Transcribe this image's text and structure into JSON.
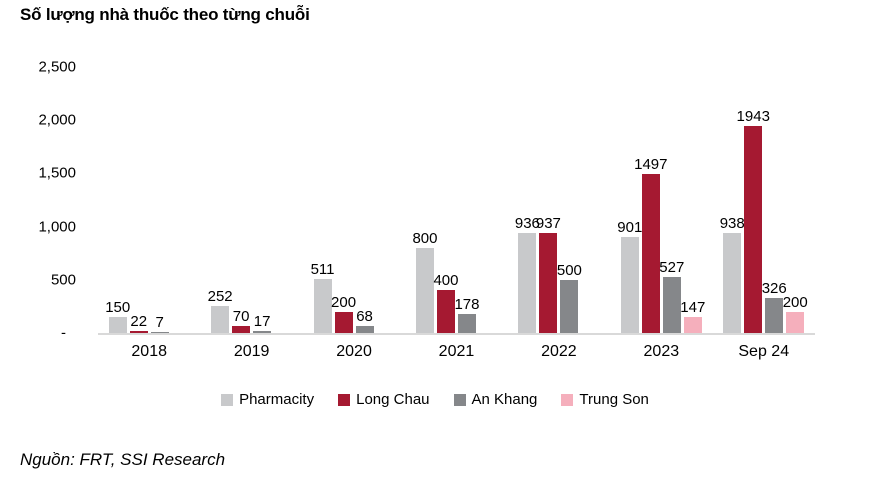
{
  "title": "Số lượng nhà thuốc theo từng chuỗi",
  "source": "Nguồn: FRT, SSI Research",
  "chart_data": {
    "type": "bar",
    "title": "Số lượng nhà thuốc theo từng chuỗi",
    "categories": [
      "2018",
      "2019",
      "2020",
      "2021",
      "2022",
      "2023",
      "Sep 24"
    ],
    "series": [
      {
        "name": "Pharmacity",
        "color": "#C8C9CB",
        "values": [
          150,
          252,
          511,
          800,
          936,
          901,
          938
        ]
      },
      {
        "name": "Long Chau",
        "color": "#A51931",
        "values": [
          22,
          70,
          200,
          400,
          937,
          1497,
          1943
        ]
      },
      {
        "name": "An Khang",
        "color": "#85878A",
        "values": [
          7,
          17,
          68,
          178,
          500,
          527,
          326
        ]
      },
      {
        "name": "Trung Son",
        "color": "#F5AFBC",
        "values": [
          0,
          0,
          0,
          0,
          0,
          147,
          200
        ]
      }
    ],
    "ylim": [
      0,
      2500
    ],
    "y_ticks": [
      "2,500",
      "2,000",
      "1,500",
      "1,000",
      "500",
      "-"
    ],
    "xlabel": "",
    "ylabel": "",
    "grid": false,
    "legend_position": "bottom",
    "axis_line_color": "#D9D9D9"
  }
}
